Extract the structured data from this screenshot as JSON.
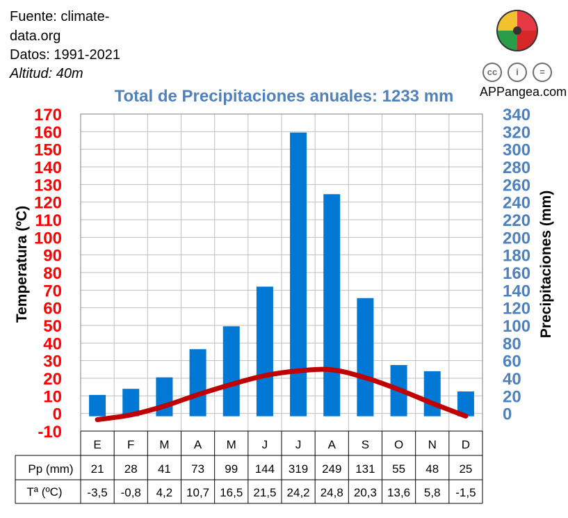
{
  "source": {
    "line1": "Fuente: climate-",
    "line2": "data.org",
    "line3": "Datos: 1991-2021",
    "line4": "Altitud: 40m"
  },
  "brand": "APPangea.com",
  "license_icons": [
    "cc-icon",
    "by-icon",
    "nd-icon"
  ],
  "colors": {
    "temperature": "#c00000",
    "precipitation": "#0078d4",
    "precip_axis": "#4f81bd",
    "temp_axis": "#ff0000"
  },
  "chart_data": {
    "type": "bar",
    "title": "Total de Precipitaciones anuales: 1233 mm",
    "categories": [
      "E",
      "F",
      "M",
      "A",
      "M",
      "J",
      "J",
      "A",
      "S",
      "O",
      "N",
      "D"
    ],
    "series": [
      {
        "name": "Pp (mm)",
        "type": "bar",
        "axis": "right",
        "values": [
          21,
          28,
          41,
          73,
          99,
          144,
          319,
          249,
          131,
          55,
          48,
          25
        ]
      },
      {
        "name": "Tª (ºC)",
        "type": "line",
        "axis": "left",
        "values": [
          -3.5,
          -0.8,
          4.2,
          10.7,
          16.5,
          21.5,
          24.2,
          24.8,
          20.3,
          13.6,
          5.8,
          -1.5
        ]
      }
    ],
    "table_labels": {
      "precip": [
        "21",
        "28",
        "41",
        "73",
        "99",
        "144",
        "319",
        "249",
        "131",
        "55",
        "48",
        "25"
      ],
      "temp": [
        "-3,5",
        "-0,8",
        "4,2",
        "10,7",
        "16,5",
        "21,5",
        "24,2",
        "24,8",
        "20,3",
        "13,6",
        "5,8",
        "-1,5"
      ]
    },
    "y_left": {
      "label": "Temperatura (ºC)",
      "range": [
        -10,
        170
      ],
      "ticks": [
        -10,
        0,
        10,
        20,
        30,
        40,
        50,
        60,
        70,
        80,
        90,
        100,
        110,
        120,
        130,
        140,
        150,
        160,
        170
      ]
    },
    "y_right": {
      "label": "Precipitaciones (mm)",
      "range": [
        0,
        340
      ],
      "ticks": [
        0,
        20,
        40,
        60,
        80,
        100,
        120,
        140,
        160,
        180,
        200,
        220,
        240,
        260,
        280,
        300,
        320,
        340
      ]
    },
    "grid": true
  }
}
